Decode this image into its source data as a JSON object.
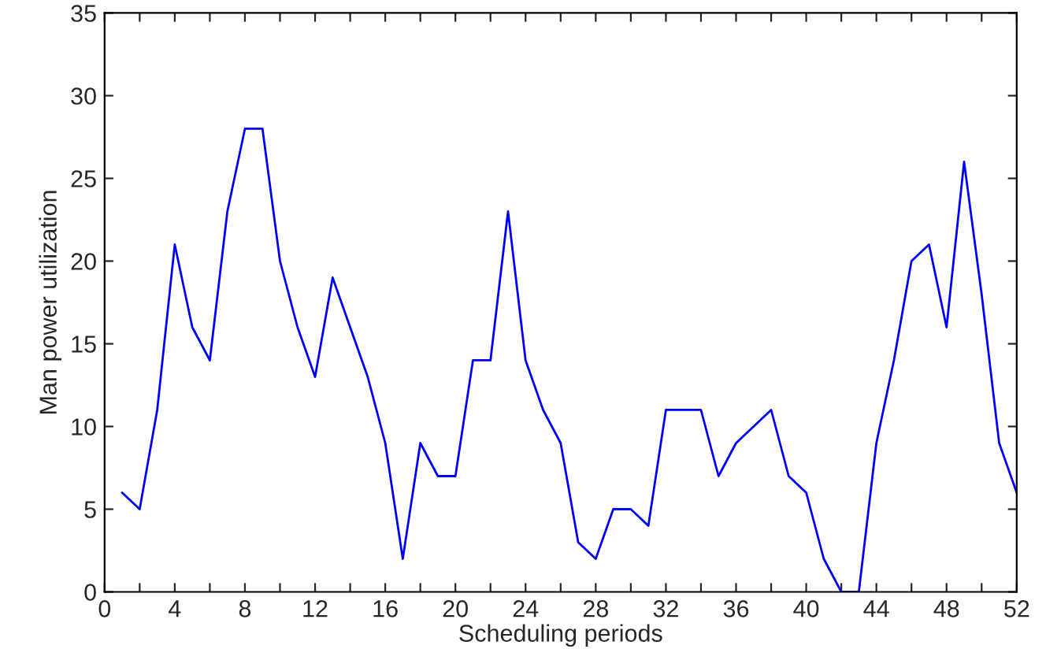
{
  "chart_data": {
    "type": "line",
    "xlabel": "Scheduling periods",
    "ylabel": "Man power utilization",
    "x": [
      1,
      2,
      3,
      4,
      5,
      6,
      7,
      8,
      9,
      10,
      11,
      12,
      13,
      14,
      15,
      16,
      17,
      18,
      19,
      20,
      21,
      22,
      23,
      24,
      25,
      26,
      27,
      28,
      29,
      30,
      31,
      32,
      33,
      34,
      35,
      36,
      37,
      38,
      39,
      40,
      41,
      42,
      43,
      44,
      45,
      46,
      47,
      48,
      49,
      50,
      51,
      52
    ],
    "series": [
      {
        "color": "#0000ff",
        "values": [
          6,
          5,
          11,
          21,
          16,
          14,
          23,
          28,
          28,
          20,
          16,
          13,
          19,
          16,
          13,
          9,
          2,
          9,
          7,
          7,
          14,
          14,
          23,
          14,
          11,
          9,
          3,
          2,
          5,
          5,
          4,
          11,
          11,
          11,
          7,
          9,
          10,
          11,
          7,
          6,
          2,
          0,
          0,
          9,
          14,
          20,
          21,
          16,
          26,
          18,
          9,
          6
        ]
      }
    ],
    "xlim": [
      0,
      52
    ],
    "ylim": [
      0,
      35
    ],
    "xticks": [
      0,
      {
        "value": 2,
        "label": null
      },
      4,
      {
        "value": 6,
        "label": null
      },
      8,
      {
        "value": 10,
        "label": null
      },
      12,
      {
        "value": 14,
        "label": null
      },
      16,
      {
        "value": 18,
        "label": null
      },
      20,
      {
        "value": 22,
        "label": null
      },
      24,
      {
        "value": 26,
        "label": null
      },
      28,
      {
        "value": 30,
        "label": null
      },
      32,
      {
        "value": 34,
        "label": null
      },
      36,
      {
        "value": 38,
        "label": null
      },
      40,
      {
        "value": 42,
        "label": null
      },
      44,
      {
        "value": 46,
        "label": null
      },
      48,
      {
        "value": 50,
        "label": null
      },
      52
    ],
    "yticks": [
      0,
      5,
      10,
      15,
      20,
      25,
      30,
      35
    ],
    "grid": false,
    "legend": false,
    "marker": "none",
    "line_style": "solid"
  }
}
